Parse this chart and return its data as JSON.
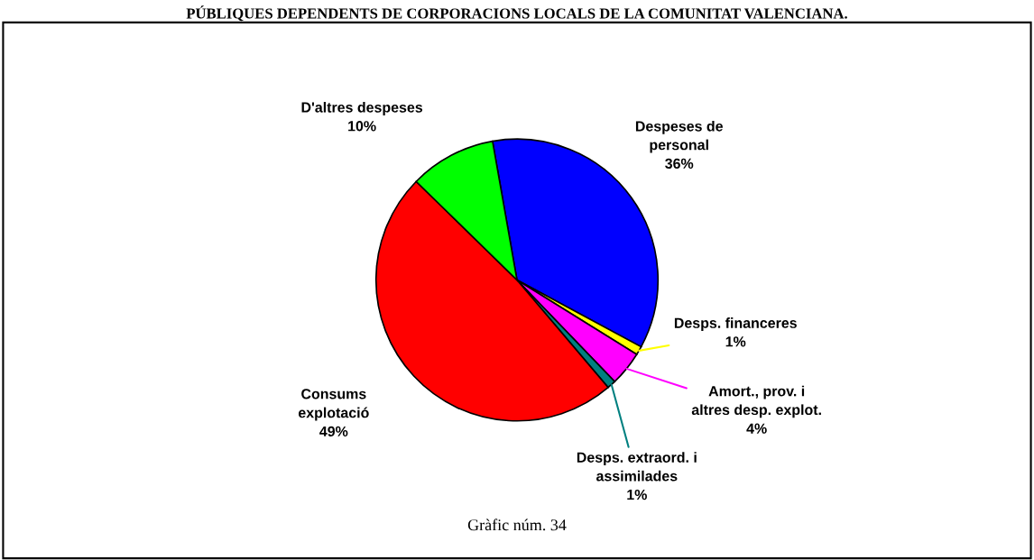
{
  "chart_data": {
    "type": "pie",
    "title": "PÚBLIQUES DEPENDENTS DE CORPORACIONS LOCALS DE LA COMUNITAT VALENCIANA.",
    "categories": [
      "Despeses de\npersonal",
      "Desps. financeres",
      "Amort., prov. i\naltres desp. explot.",
      "Desps. extraord. i\nassimilades",
      "Consums\nexplotació",
      "D'altres despeses"
    ],
    "values": [
      36,
      1,
      4,
      1,
      49,
      10
    ],
    "value_labels": [
      "36%",
      "1%",
      "4%",
      "1%",
      "49%",
      "10%"
    ],
    "colors": [
      "#0000ff",
      "#ffff00",
      "#ff00ff",
      "#008080",
      "#ff0000",
      "#00ff00"
    ],
    "annotations": [
      "Gràfic núm. 34"
    ],
    "legend": false
  }
}
